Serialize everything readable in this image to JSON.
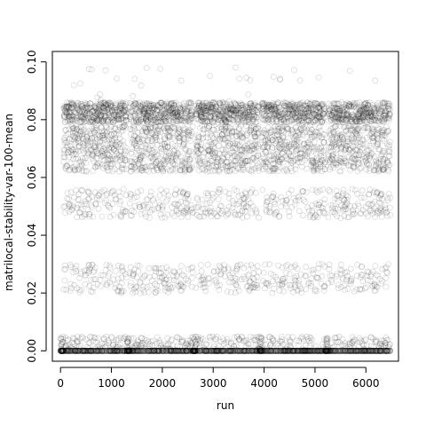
{
  "chart_data": {
    "type": "scatter",
    "title": "",
    "xlabel": "run",
    "ylabel": "matrilocal-stability-var-100-mean",
    "xlim": [
      -160,
      6640
    ],
    "ylim": [
      -0.0036,
      0.1036
    ],
    "x_ticks": [
      0,
      1000,
      2000,
      3000,
      4000,
      5000,
      6000
    ],
    "x_tick_labels": [
      "0",
      "1000",
      "2000",
      "3000",
      "4000",
      "5000",
      "6000"
    ],
    "y_ticks": [
      0.0,
      0.02,
      0.04,
      0.06,
      0.08,
      0.1
    ],
    "y_tick_labels": [
      "0.00",
      "0.02",
      "0.04",
      "0.06",
      "0.08",
      "0.10"
    ],
    "n_runs": 6480,
    "block_starts": [
      0,
      1300,
      2600,
      3900,
      5200
    ],
    "point_style": {
      "marker": "open-circle",
      "color": "#000000",
      "alpha": 0.15
    },
    "value_bands": [
      {
        "name": "zero",
        "level": 0.0
      },
      {
        "name": "low",
        "range": [
          0.0,
          0.005
        ]
      },
      {
        "name": "lower-middle",
        "range": [
          0.02,
          0.03
        ]
      },
      {
        "name": "middle",
        "range": [
          0.046,
          0.056
        ]
      },
      {
        "name": "upper",
        "range": [
          0.062,
          0.078
        ]
      },
      {
        "name": "top",
        "range": [
          0.079,
          0.086
        ]
      }
    ],
    "outliers_max": 0.0985,
    "grid": false,
    "legend": "none"
  }
}
